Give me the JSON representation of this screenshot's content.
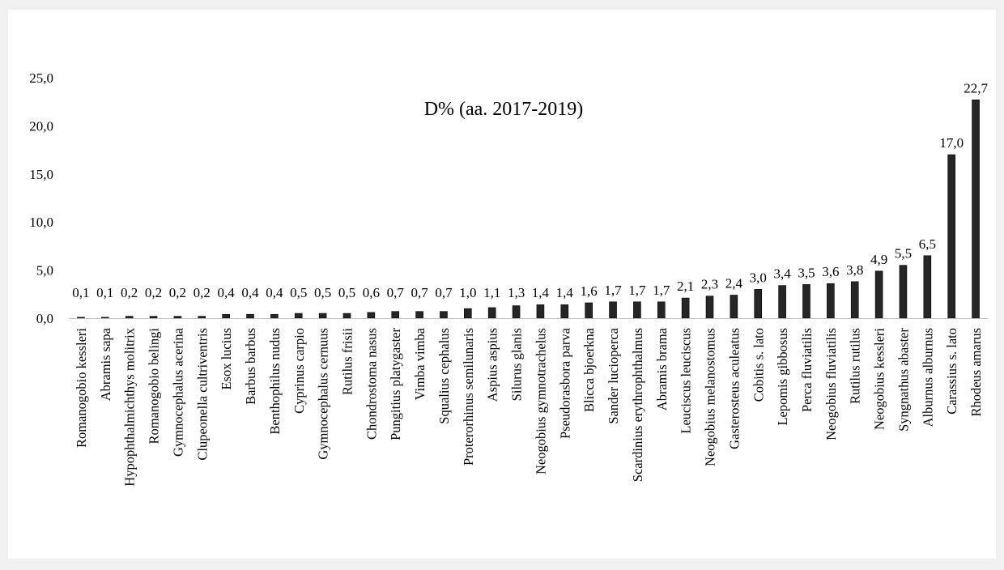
{
  "chart_data": {
    "type": "bar",
    "title": "D% (aa. 2017-2019)",
    "xlabel": "",
    "ylabel": "",
    "ylim": [
      0,
      25
    ],
    "yticks": [
      "0,0",
      "5,0",
      "10,0",
      "15,0",
      "20,0",
      "25,0"
    ],
    "ytick_values": [
      0,
      5,
      10,
      15,
      20,
      25
    ],
    "grid": false,
    "legend": "none",
    "bar_color": "#262626",
    "categories": [
      "Romanogobio kessleri",
      "Abramis sapa",
      "Hypophthalmichthys molitrix",
      "Romanogobio belingi",
      "Gymnocephalus acerina",
      "Clupeonella cultriventris",
      "Esox lucius",
      "Barbus barbus",
      "Benthophilus nudus",
      "Cyprinus carpio",
      "Gymnocephalus cernuus",
      "Rutilus frisii",
      "Chondrostoma nasus",
      "Pungitius platygaster",
      "Vimba vimba",
      "Squalius cephalus",
      "Proterorhinus semilunaris",
      "Aspius aspius",
      "Silurus glanis",
      "Neogobius gymnotrachelus",
      "Pseudorasbora parva",
      "Blicca bjoerkna",
      "Sander lucioperca",
      "Scardinius erythrophthalmus",
      "Abramis brama",
      "Leuciscus leuciscus",
      "Neogobius melanostomus",
      "Gasterosteus aculeatus",
      "Cobitis s. lato",
      "Lepomis gibbosus",
      "Perca fluviatilis",
      "Neogobius fluviatilis",
      "Rutilus rutilus",
      "Neogobius kessleri",
      "Syngnathus abaster",
      "Alburnus alburnus",
      "Carassius s. lato",
      "Rhodeus amarus"
    ],
    "values": [
      0.1,
      0.1,
      0.2,
      0.2,
      0.2,
      0.2,
      0.4,
      0.4,
      0.4,
      0.5,
      0.5,
      0.5,
      0.6,
      0.7,
      0.7,
      0.7,
      1.0,
      1.1,
      1.3,
      1.4,
      1.4,
      1.6,
      1.7,
      1.7,
      1.7,
      2.1,
      2.3,
      2.4,
      3.0,
      3.4,
      3.5,
      3.6,
      3.8,
      4.9,
      5.5,
      6.5,
      17.0,
      22.7
    ],
    "data_labels": [
      "0,1",
      "0,1",
      "0,2",
      "0,2",
      "0,2",
      "0,2",
      "0,4",
      "0,4",
      "0,4",
      "0,5",
      "0,5",
      "0,5",
      "0,6",
      "0,7",
      "0,7",
      "0,7",
      "1,0",
      "1,1",
      "1,3",
      "1,4",
      "1,4",
      "1,6",
      "1,7",
      "1,7",
      "1,7",
      "2,1",
      "2,3",
      "2,4",
      "3,0",
      "3,4",
      "3,5",
      "3,6",
      "3,8",
      "4,9",
      "5,5",
      "6,5",
      "17,0",
      "22,7"
    ]
  }
}
